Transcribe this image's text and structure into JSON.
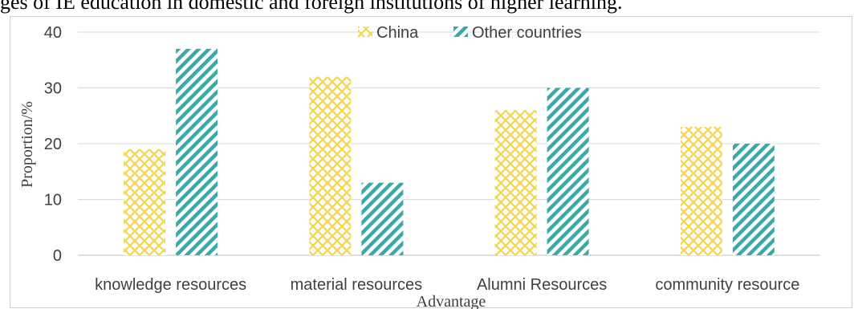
{
  "header": {
    "caption": "ges of IE education in domestic and foreign institutions of higher learning."
  },
  "chart_data": {
    "type": "bar",
    "categories": [
      "knowledge resources",
      "material resources",
      "Alumni Resources",
      "community resource"
    ],
    "series": [
      {
        "name": "China",
        "values": [
          19,
          32,
          26,
          23
        ],
        "color": "#f5d54a",
        "pattern": "crosshatch"
      },
      {
        "name": "Other countries",
        "values": [
          37,
          13,
          30,
          20
        ],
        "color": "#3ba9a9",
        "pattern": "diagonal-stripes"
      }
    ],
    "xlabel": "Advantage",
    "ylabel": "Proportion/%",
    "ylim": [
      0,
      40
    ],
    "yticks": [
      "0",
      "10",
      "20",
      "30",
      "40"
    ],
    "grid": true,
    "legend": "top"
  }
}
